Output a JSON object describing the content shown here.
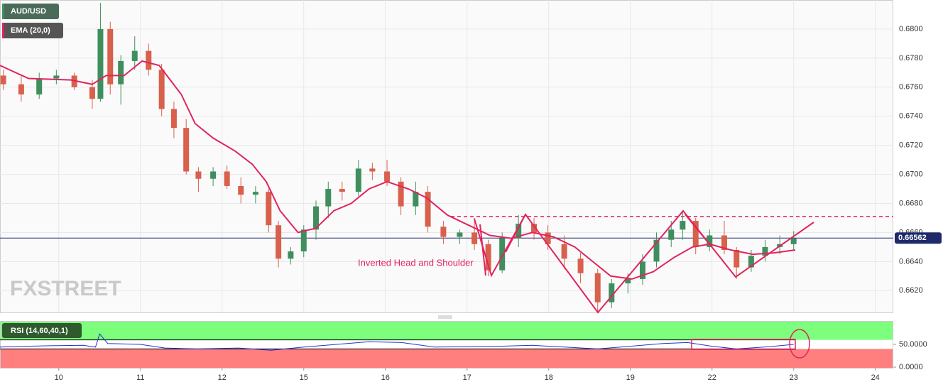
{
  "chart_data": [
    {
      "type": "candlestick",
      "title": "AUD/USD",
      "annotation": "Inverted Head and Shoulder",
      "watermark": "FXSTREET",
      "up_color": "#3f8f5e",
      "down_color": "#d8604c",
      "x": [
        -0.68,
        -0.46,
        -0.24,
        -0.03,
        0.19,
        0.41,
        0.51,
        0.63,
        0.76,
        0.93,
        1.1,
        1.26,
        1.41,
        1.56,
        1.71,
        1.89,
        2.06,
        2.23,
        2.41,
        2.57,
        2.69,
        2.84,
        3.0,
        3.15,
        3.3,
        3.47,
        3.67,
        3.84,
        4.02,
        4.19,
        4.37,
        4.52,
        4.71,
        4.91,
        5.09,
        5.26,
        5.43,
        5.63,
        5.82,
        5.99,
        6.19,
        6.39,
        6.6,
        6.77,
        6.97,
        7.15,
        7.32,
        7.5,
        7.64,
        7.8,
        7.97,
        8.15,
        8.3,
        8.48,
        8.65,
        8.83,
        9.0
      ],
      "open": [
        0.6768,
        0.6762,
        0.6755,
        0.6766,
        0.6768,
        0.676,
        0.6752,
        0.68,
        0.6762,
        0.6778,
        0.6785,
        0.6772,
        0.6745,
        0.6732,
        0.6702,
        0.6697,
        0.6702,
        0.6692,
        0.6686,
        0.6688,
        0.6665,
        0.6642,
        0.6647,
        0.6662,
        0.6678,
        0.669,
        0.6688,
        0.6704,
        0.6702,
        0.6695,
        0.6678,
        0.6688,
        0.6664,
        0.6657,
        0.666,
        0.6652,
        0.6634,
        0.6656,
        0.6666,
        0.666,
        0.6652,
        0.6642,
        0.6632,
        0.6612,
        0.6625,
        0.6628,
        0.664,
        0.6655,
        0.6662,
        0.6668,
        0.665,
        0.6658,
        0.6648,
        0.6636,
        0.6644,
        0.665,
        0.6652
      ],
      "high": [
        0.6772,
        0.6768,
        0.677,
        0.6772,
        0.677,
        0.6765,
        0.6818,
        0.6805,
        0.6782,
        0.6795,
        0.679,
        0.6776,
        0.675,
        0.6738,
        0.6705,
        0.6705,
        0.6706,
        0.6698,
        0.6692,
        0.669,
        0.6668,
        0.665,
        0.6665,
        0.6682,
        0.6695,
        0.6695,
        0.671,
        0.6708,
        0.671,
        0.6698,
        0.6695,
        0.6692,
        0.6668,
        0.6662,
        0.667,
        0.6655,
        0.666,
        0.6672,
        0.667,
        0.6665,
        0.6658,
        0.6646,
        0.6635,
        0.6628,
        0.6632,
        0.6645,
        0.666,
        0.6668,
        0.6675,
        0.667,
        0.6662,
        0.6668,
        0.665,
        0.6648,
        0.6655,
        0.6658,
        0.6661
      ],
      "low": [
        0.6758,
        0.675,
        0.6752,
        0.6762,
        0.6758,
        0.6745,
        0.675,
        0.6755,
        0.6748,
        0.6772,
        0.6768,
        0.674,
        0.6725,
        0.67,
        0.6688,
        0.6692,
        0.669,
        0.668,
        0.668,
        0.666,
        0.6636,
        0.6638,
        0.6643,
        0.6655,
        0.667,
        0.6682,
        0.6685,
        0.6696,
        0.6692,
        0.6672,
        0.6672,
        0.666,
        0.6652,
        0.6652,
        0.6648,
        0.663,
        0.6632,
        0.665,
        0.6655,
        0.6648,
        0.6635,
        0.6625,
        0.6605,
        0.6608,
        0.6618,
        0.6624,
        0.6636,
        0.665,
        0.6655,
        0.6645,
        0.6647,
        0.6645,
        0.6628,
        0.6633,
        0.664,
        0.6645,
        0.6648
      ],
      "close": [
        0.6762,
        0.6755,
        0.6766,
        0.6768,
        0.676,
        0.6752,
        0.68,
        0.6762,
        0.6778,
        0.6785,
        0.6772,
        0.6745,
        0.6732,
        0.6702,
        0.6697,
        0.6702,
        0.6692,
        0.6686,
        0.6688,
        0.6665,
        0.6642,
        0.6647,
        0.6662,
        0.6678,
        0.669,
        0.6688,
        0.6704,
        0.6702,
        0.6695,
        0.6678,
        0.6688,
        0.6664,
        0.6657,
        0.666,
        0.6652,
        0.6634,
        0.6656,
        0.6666,
        0.666,
        0.6652,
        0.6642,
        0.6632,
        0.6612,
        0.6625,
        0.6628,
        0.664,
        0.6655,
        0.6662,
        0.6668,
        0.665,
        0.6658,
        0.6648,
        0.6636,
        0.6644,
        0.665,
        0.6652,
        0.6656
      ],
      "series": [
        {
          "name": "EMA (20,0)",
          "color": "#e0245e",
          "x": [
            -0.72,
            -0.37,
            0.15,
            0.41,
            0.58,
            0.8,
            1.02,
            1.23,
            1.5,
            1.67,
            1.89,
            2.16,
            2.37,
            2.54,
            2.71,
            2.93,
            3.15,
            3.37,
            3.58,
            3.8,
            4.02,
            4.28,
            4.5,
            4.76,
            5.02,
            5.28,
            5.54,
            5.8,
            6.06,
            6.32,
            6.54,
            6.76,
            7.02,
            7.28,
            7.54,
            7.76,
            7.97,
            8.23,
            8.5,
            8.76,
            9.02
          ],
          "values": [
            0.6775,
            0.6766,
            0.6765,
            0.6762,
            0.6768,
            0.6768,
            0.6778,
            0.6775,
            0.6755,
            0.6735,
            0.6725,
            0.6716,
            0.6707,
            0.6695,
            0.6675,
            0.666,
            0.6663,
            0.6675,
            0.668,
            0.669,
            0.6695,
            0.669,
            0.6684,
            0.6672,
            0.6665,
            0.6658,
            0.6656,
            0.666,
            0.6657,
            0.665,
            0.664,
            0.663,
            0.6628,
            0.6633,
            0.6643,
            0.665,
            0.6652,
            0.6648,
            0.6645,
            0.6646,
            0.6648
          ]
        }
      ],
      "last_price": {
        "value": 0.66562,
        "label": "0.66562"
      },
      "last_price_color": "#1f2a6b",
      "resistance": 0.6671,
      "xlim": [
        -0.72,
        10.22
      ],
      "ylim": [
        0.6605,
        0.682
      ],
      "yticks": [
        {
          "value": 0.662,
          "label": "0.6620"
        },
        {
          "value": 0.664,
          "label": "0.6640"
        },
        {
          "value": 0.666,
          "label": "0.6660"
        },
        {
          "value": 0.668,
          "label": "0.6680"
        },
        {
          "value": 0.67,
          "label": "0.6700"
        },
        {
          "value": 0.672,
          "label": "0.6720"
        },
        {
          "value": 0.674,
          "label": "0.6740"
        },
        {
          "value": 0.676,
          "label": "0.6760"
        },
        {
          "value": 0.678,
          "label": "0.6780"
        },
        {
          "value": 0.68,
          "label": "0.6800"
        }
      ],
      "grid": true
    },
    {
      "type": "line",
      "upper_band": 60,
      "lower_band": 40,
      "upper_color": "#7dff7d",
      "lower_color": "#ff7f7f",
      "series": [
        {
          "name": "RSI (14,60,40,1)",
          "color": "#2233cc",
          "x": [
            -0.72,
            -0.4,
            -0.1,
            0.3,
            0.45,
            0.5,
            0.6,
            1.0,
            1.3,
            1.7,
            2.2,
            2.6,
            3.0,
            3.4,
            3.8,
            4.2,
            4.6,
            5.0,
            5.4,
            5.8,
            6.2,
            6.6,
            7.0,
            7.4,
            7.7,
            8.0,
            8.3,
            8.7,
            9.0
          ],
          "values": [
            44,
            46,
            47,
            48,
            44,
            73,
            52,
            50,
            42,
            40,
            42,
            37,
            44,
            50,
            56,
            54,
            44,
            45,
            46,
            48,
            44,
            40,
            46,
            52,
            54,
            46,
            40,
            45,
            50
          ]
        }
      ],
      "xlim": [
        -0.72,
        10.22
      ],
      "ylim": [
        0,
        100
      ],
      "yticks": [
        {
          "value": 50,
          "label": "50.0000"
        },
        {
          "value": 0,
          "label": "0.0000"
        }
      ],
      "xticks": [
        {
          "value": 0,
          "label": "10"
        },
        {
          "value": 1,
          "label": "11"
        },
        {
          "value": 2,
          "label": "12"
        },
        {
          "value": 3,
          "label": "15"
        },
        {
          "value": 4,
          "label": "16"
        },
        {
          "value": 5,
          "label": "17"
        },
        {
          "value": 6,
          "label": "18"
        },
        {
          "value": 7,
          "label": "19"
        },
        {
          "value": 8,
          "label": "22"
        },
        {
          "value": 9,
          "label": "23"
        },
        {
          "value": 10,
          "label": "24"
        }
      ]
    }
  ]
}
